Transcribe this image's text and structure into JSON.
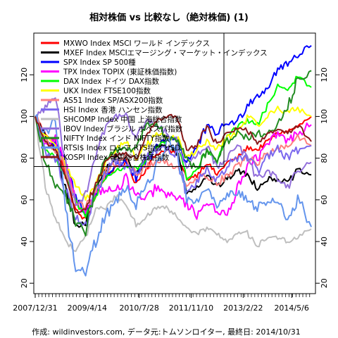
{
  "chart_data": {
    "type": "line",
    "title": "相対株価 vs 比較なし（絶対株価) (1)",
    "note": "作成: wildinvestors.com, データ元:トムソンロイター, 最終日: 2014/10/31",
    "x_tick_labels": [
      "2007/12/31",
      "2009/4/14",
      "2010/7/28",
      "2011/11/10",
      "2013/2/22",
      "2014/5/6"
    ],
    "x_tick_dates": [
      "2007-12-31",
      "2009-04-14",
      "2010-07-28",
      "2011-11-10",
      "2013-02-22",
      "2014-05-06"
    ],
    "x_range": [
      "2007-12-31",
      "2014-10-31"
    ],
    "ylim": [
      15,
      140
    ],
    "y_ticks": [
      20,
      40,
      60,
      80,
      100,
      120
    ],
    "grid": false,
    "legend_position": "top-left",
    "x": [
      "2007-12-31",
      "2008-03-31",
      "2008-06-30",
      "2008-09-30",
      "2008-12-31",
      "2009-03-31",
      "2009-06-30",
      "2009-09-30",
      "2009-12-31",
      "2010-03-31",
      "2010-06-30",
      "2010-09-30",
      "2010-12-31",
      "2011-03-31",
      "2011-06-30",
      "2011-09-30",
      "2011-12-31",
      "2012-03-31",
      "2012-06-30",
      "2012-09-30",
      "2012-12-31",
      "2013-03-31",
      "2013-06-30",
      "2013-09-30",
      "2013-12-31",
      "2014-03-31",
      "2014-06-30",
      "2014-10-31"
    ],
    "series": [
      {
        "name": "MXWO Index MSCI ワールド インデックス",
        "color": "#ff0000",
        "values": [
          100,
          92,
          88,
          72,
          55,
          50,
          62,
          72,
          75,
          78,
          68,
          75,
          82,
          84,
          82,
          70,
          72,
          78,
          72,
          78,
          80,
          85,
          84,
          88,
          92,
          93,
          95,
          100
        ]
      },
      {
        "name": "MXEF Index MSCIエマージング・マーケット・インデックス",
        "color": "#000000",
        "values": [
          100,
          90,
          85,
          65,
          47,
          50,
          65,
          75,
          80,
          80,
          72,
          80,
          86,
          86,
          84,
          64,
          66,
          72,
          66,
          70,
          74,
          72,
          66,
          70,
          70,
          68,
          74,
          72
        ]
      },
      {
        "name": "SPX Index SP 500種",
        "color": "#0000ff",
        "values": [
          100,
          89,
          86,
          78,
          61,
          54,
          63,
          72,
          76,
          79,
          70,
          78,
          85,
          90,
          89,
          78,
          85,
          95,
          92,
          97,
          97,
          106,
          110,
          114,
          123,
          125,
          130,
          134
        ]
      },
      {
        "name": "TPX Index TOPIX (東証株価指数)",
        "color": "#ff00ff",
        "values": [
          100,
          86,
          88,
          76,
          58,
          55,
          64,
          65,
          64,
          70,
          62,
          60,
          66,
          62,
          62,
          58,
          53,
          60,
          53,
          55,
          64,
          78,
          80,
          86,
          92,
          88,
          92,
          96
        ]
      },
      {
        "name": "DAX Index ドイツ DAX指数",
        "color": "#00ff00",
        "values": [
          100,
          84,
          80,
          72,
          59,
          52,
          62,
          70,
          74,
          76,
          75,
          78,
          86,
          88,
          90,
          70,
          74,
          84,
          78,
          90,
          95,
          98,
          96,
          105,
          115,
          113,
          119,
          114
        ]
      },
      {
        "name": "UKX Index FTSE100指数",
        "color": "#ffff00",
        "values": [
          100,
          90,
          88,
          76,
          68,
          60,
          66,
          78,
          84,
          88,
          80,
          86,
          92,
          90,
          90,
          80,
          84,
          88,
          84,
          90,
          92,
          100,
          96,
          100,
          104,
          102,
          104,
          100
        ]
      },
      {
        "name": "AS51 Index SP/ASX200指数",
        "color": "#ff8080",
        "values": [
          100,
          88,
          84,
          76,
          60,
          56,
          64,
          74,
          78,
          80,
          72,
          76,
          78,
          78,
          76,
          68,
          70,
          72,
          68,
          72,
          76,
          80,
          78,
          82,
          84,
          86,
          90,
          86
        ]
      },
      {
        "name": "HSI Index 香港 ハンセン指数",
        "color": "#7b68ee",
        "values": [
          100,
          82,
          80,
          65,
          52,
          48,
          64,
          74,
          78,
          76,
          72,
          80,
          84,
          84,
          82,
          64,
          68,
          76,
          70,
          76,
          80,
          80,
          74,
          80,
          84,
          80,
          84,
          86
        ]
      },
      {
        "name": "SHCOMP Index 中国 上海総合指数",
        "color": "#bfbfbf",
        "values": [
          100,
          66,
          52,
          40,
          36,
          42,
          56,
          56,
          62,
          58,
          48,
          52,
          56,
          56,
          52,
          46,
          44,
          46,
          44,
          40,
          44,
          44,
          38,
          42,
          42,
          40,
          42,
          46
        ]
      },
      {
        "name": "IBOV Index ブラジル ボベスパ指数",
        "color": "#9370db",
        "values": [
          100,
          104,
          110,
          78,
          58,
          62,
          82,
          96,
          100,
          100,
          90,
          98,
          96,
          92,
          88,
          76,
          82,
          86,
          76,
          80,
          86,
          80,
          70,
          74,
          70,
          66,
          74,
          78
        ]
      },
      {
        "name": "NIFTY Index インド NIFTY指数",
        "color": "#228b22",
        "values": [
          100,
          78,
          66,
          64,
          48,
          46,
          66,
          80,
          84,
          84,
          84,
          96,
          96,
          90,
          88,
          80,
          74,
          84,
          80,
          88,
          92,
          90,
          92,
          90,
          98,
          104,
          118,
          122
        ]
      },
      {
        "name": "RTSI$ Index ロシア RTS指数 USD",
        "color": "#6495ed",
        "values": [
          100,
          92,
          98,
          56,
          26,
          26,
          40,
          52,
          60,
          66,
          58,
          66,
          76,
          88,
          82,
          60,
          60,
          68,
          56,
          62,
          64,
          60,
          56,
          60,
          60,
          48,
          60,
          47
        ]
      },
      {
        "name": "KOSPI Index 韓国総合株価指数",
        "color": "#8b1a1a",
        "values": [
          100,
          88,
          84,
          72,
          54,
          56,
          68,
          78,
          82,
          82,
          80,
          90,
          98,
          100,
          100,
          84,
          86,
          96,
          86,
          92,
          94,
          94,
          86,
          92,
          94,
          92,
          96,
          88
        ]
      }
    ]
  }
}
